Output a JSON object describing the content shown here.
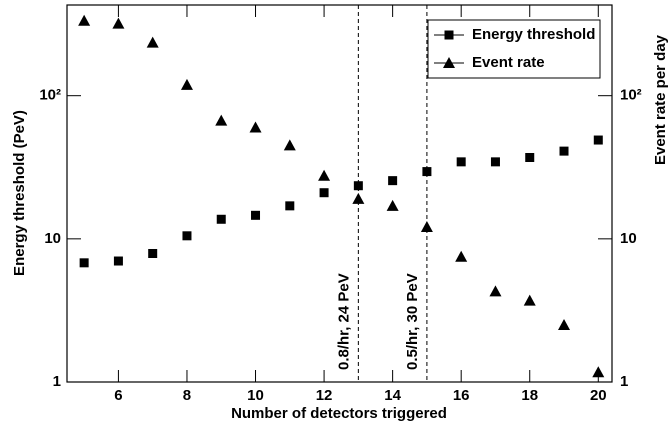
{
  "chart_data": {
    "type": "scatter",
    "x_label": "Number of detectors triggered",
    "y_label": "Energy threshold (PeV)",
    "y2_label": "Event rate per day",
    "x": [
      5,
      6,
      7,
      8,
      9,
      10,
      11,
      12,
      13,
      14,
      15,
      16,
      17,
      18,
      19,
      20
    ],
    "series": [
      {
        "name": "Energy threshold",
        "color": "#000000",
        "marker": "square",
        "values": [
          6.8,
          7.0,
          7.9,
          10.5,
          13.7,
          14.6,
          17,
          21,
          23.5,
          25.5,
          29.5,
          34.5,
          34.5,
          37,
          41,
          49
        ]
      },
      {
        "name": "Event rate",
        "color": "#000000",
        "marker": "triangle",
        "axis": "y2",
        "values": [
          334,
          319,
          235,
          119,
          67,
          60,
          45,
          27.6,
          19,
          17,
          12.1,
          7.5,
          4.3,
          3.7,
          2.5,
          1.17
        ]
      }
    ],
    "xlim": [
      4.5,
      20.4
    ],
    "xticks": [
      6,
      8,
      10,
      12,
      14,
      16,
      18,
      20
    ],
    "ylim": [
      1,
      430
    ],
    "yticks": [
      1,
      10,
      {
        "value": 100,
        "label": "10²"
      }
    ],
    "ylog": true,
    "y2lim": [
      1,
      430
    ],
    "y2ticks": [
      1,
      10,
      {
        "value": 100,
        "label": "10²"
      }
    ],
    "y2log": true,
    "annotations": [
      {
        "x": 13,
        "text": "0.8/hr, 24 PeV"
      },
      {
        "x": 15,
        "text": "0.5/hr, 30 PeV"
      }
    ],
    "legend": "upper right"
  }
}
